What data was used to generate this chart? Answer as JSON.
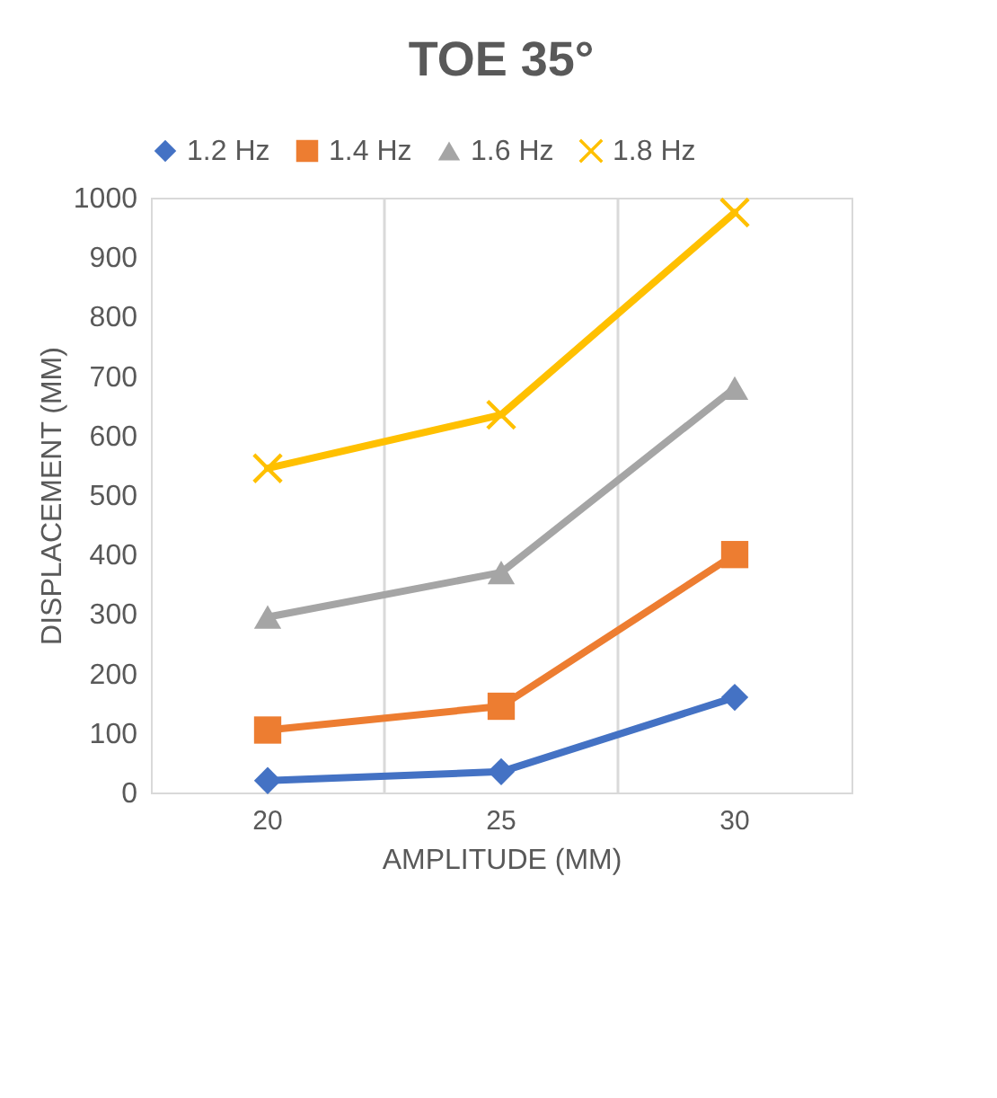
{
  "chart_data": {
    "type": "line",
    "title": "TOE 35°",
    "xlabel": "AMPLITUDE (MM)",
    "ylabel": "DISPLACEMENT (MM)",
    "categories": [
      "20",
      "25",
      "30"
    ],
    "series": [
      {
        "name": "1.2 Hz",
        "color": "#4472c4",
        "marker": "diamond",
        "values": [
          20,
          35,
          160
        ]
      },
      {
        "name": "1.4 Hz",
        "color": "#ed7d31",
        "marker": "square",
        "values": [
          105,
          145,
          400
        ]
      },
      {
        "name": "1.6 Hz",
        "color": "#a5a5a5",
        "marker": "triangle",
        "values": [
          295,
          370,
          680
        ]
      },
      {
        "name": "1.8 Hz",
        "color": "#ffc000",
        "marker": "cross",
        "values": [
          545,
          635,
          975
        ]
      }
    ],
    "ylim": [
      0,
      1000
    ],
    "yticks": [
      0,
      100,
      200,
      300,
      400,
      500,
      600,
      700,
      800,
      900,
      1000
    ],
    "grid": "x",
    "legend": "top",
    "line_style": "solid"
  }
}
